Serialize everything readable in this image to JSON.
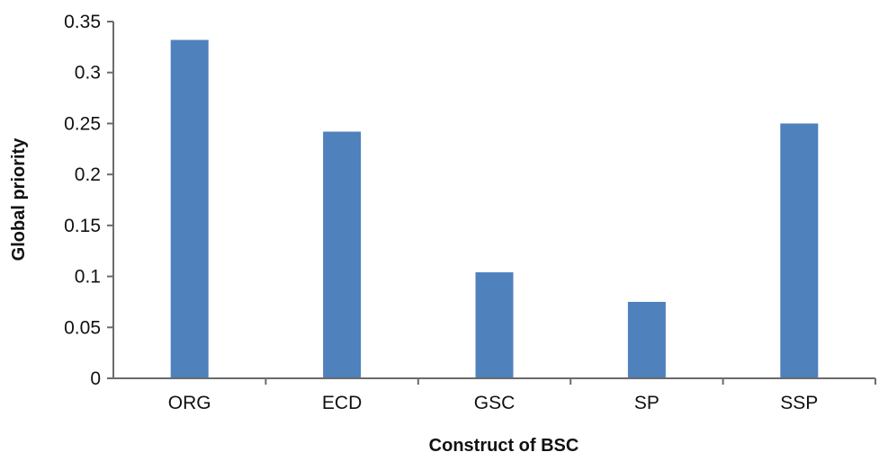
{
  "chart_data": {
    "type": "bar",
    "title": "",
    "xlabel": "Construct of BSC",
    "ylabel": "Global priority",
    "categories": [
      "ORG",
      "ECD",
      "GSC",
      "SP",
      "SSP"
    ],
    "values": [
      0.332,
      0.242,
      0.104,
      0.075,
      0.25
    ],
    "ylim": [
      0,
      0.35
    ],
    "yticks": [
      0,
      0.05,
      0.1,
      0.15,
      0.2,
      0.25,
      0.3,
      0.35
    ],
    "ytick_labels": [
      "0",
      "0.05",
      "0.1",
      "0.15",
      "0.2",
      "0.25",
      "0.3",
      "0.35"
    ],
    "grid": false,
    "legend": "none",
    "bar_color": "#4f81bd",
    "axis_color": "#6b6b6b"
  }
}
